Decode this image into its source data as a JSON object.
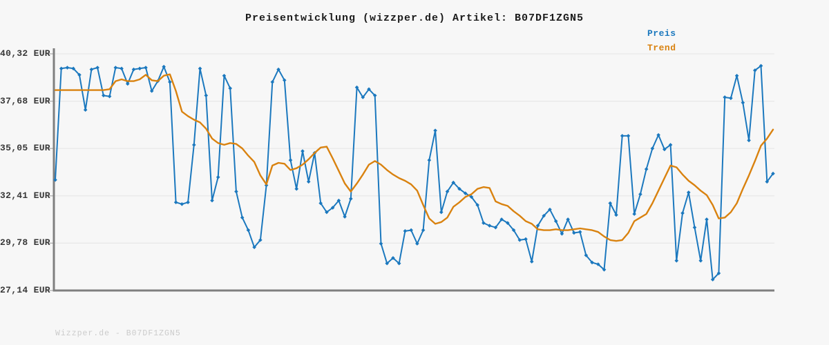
{
  "title": "Preisentwicklung (wizzper.de) Artikel: B07DF1ZGN5",
  "legend": {
    "preis_label": "Preis",
    "trend_label": "Trend"
  },
  "watermark": "Wizzper.de - B07DF1ZGN5",
  "colors": {
    "price": "#1b78be",
    "trend": "#d9820f",
    "grid": "#e4e4e4",
    "axis": "#7f7f7f",
    "tick_stub": "#999999",
    "background": "#f7f7f7",
    "title_text": "#1c1c1c",
    "tick_text": "#383838",
    "watermark_text": "#cbcbcb"
  },
  "chart_data": {
    "type": "line",
    "title": "Preisentwicklung (wizzper.de) Artikel: B07DF1ZGN5",
    "ylabel": "",
    "xlabel": "",
    "ylim": [
      27.14,
      40.32
    ],
    "grid": true,
    "legend_position": "top-right",
    "x_tick_labels_visible": false,
    "y_ticks": [
      {
        "value": 40.32,
        "label": "40,32 EUR"
      },
      {
        "value": 37.68,
        "label": "37,68 EUR"
      },
      {
        "value": 35.05,
        "label": "35,05 EUR"
      },
      {
        "value": 32.41,
        "label": "32,41 EUR"
      },
      {
        "value": 29.78,
        "label": "29,78 EUR"
      },
      {
        "value": 27.14,
        "label": "27,14 EUR"
      }
    ],
    "series": [
      {
        "name": "Preis",
        "color": "#1b78be",
        "marker": "diamond",
        "values": [
          33.3,
          39.5,
          39.55,
          39.5,
          39.15,
          37.2,
          39.45,
          39.55,
          38.0,
          37.95,
          39.55,
          39.5,
          38.65,
          39.45,
          39.5,
          39.55,
          38.25,
          38.8,
          39.6,
          38.75,
          32.05,
          31.95,
          32.05,
          35.25,
          39.5,
          38.0,
          32.15,
          33.45,
          39.1,
          38.4,
          32.65,
          31.2,
          30.5,
          29.55,
          29.95,
          33.0,
          38.75,
          39.45,
          38.85,
          34.4,
          32.8,
          34.9,
          33.2,
          34.8,
          32.0,
          31.5,
          31.75,
          32.15,
          31.25,
          32.25,
          38.45,
          37.9,
          38.35,
          38.0,
          29.75,
          28.65,
          28.95,
          28.65,
          30.45,
          30.5,
          29.75,
          30.5,
          34.4,
          36.05,
          31.5,
          32.65,
          33.15,
          32.8,
          32.55,
          32.35,
          31.9,
          30.9,
          30.75,
          30.65,
          31.1,
          30.9,
          30.5,
          29.95,
          30.0,
          28.75,
          30.75,
          31.3,
          31.65,
          31.0,
          30.3,
          31.1,
          30.35,
          30.4,
          29.1,
          28.7,
          28.6,
          28.3,
          32.0,
          31.35,
          35.75,
          35.75,
          31.4,
          32.5,
          33.9,
          35.05,
          35.8,
          35.0,
          35.25,
          28.8,
          31.45,
          32.6,
          30.65,
          28.8,
          31.1,
          27.75,
          28.1,
          37.9,
          37.85,
          39.1,
          37.6,
          35.5,
          39.4,
          39.65,
          33.2,
          33.65
        ]
      },
      {
        "name": "Trend",
        "color": "#d9820f",
        "marker": "none",
        "values": [
          38.3,
          38.3,
          38.3,
          38.3,
          38.3,
          38.3,
          38.3,
          38.3,
          38.3,
          38.35,
          38.8,
          38.9,
          38.8,
          38.8,
          38.9,
          39.15,
          38.85,
          38.8,
          39.1,
          39.18,
          38.25,
          37.1,
          36.85,
          36.65,
          36.5,
          36.15,
          35.6,
          35.35,
          35.25,
          35.35,
          35.3,
          35.05,
          34.65,
          34.3,
          33.55,
          33.05,
          34.1,
          34.25,
          34.2,
          33.85,
          33.95,
          34.15,
          34.45,
          34.8,
          35.1,
          35.15,
          34.5,
          33.8,
          33.1,
          32.65,
          33.1,
          33.6,
          34.15,
          34.35,
          34.15,
          33.85,
          33.6,
          33.4,
          33.25,
          33.05,
          32.7,
          31.9,
          31.15,
          30.85,
          30.95,
          31.2,
          31.8,
          32.05,
          32.35,
          32.5,
          32.8,
          32.9,
          32.85,
          32.1,
          31.95,
          31.85,
          31.55,
          31.3,
          31.0,
          30.85,
          30.55,
          30.5,
          30.5,
          30.55,
          30.5,
          30.5,
          30.55,
          30.6,
          30.55,
          30.5,
          30.4,
          30.15,
          29.95,
          29.9,
          29.95,
          30.35,
          31.0,
          31.2,
          31.4,
          32.0,
          32.7,
          33.4,
          34.1,
          34.0,
          33.6,
          33.25,
          33.0,
          32.7,
          32.45,
          31.9,
          31.15,
          31.2,
          31.5,
          32.0,
          32.8,
          33.55,
          34.35,
          35.2,
          35.6,
          36.1
        ]
      }
    ]
  }
}
